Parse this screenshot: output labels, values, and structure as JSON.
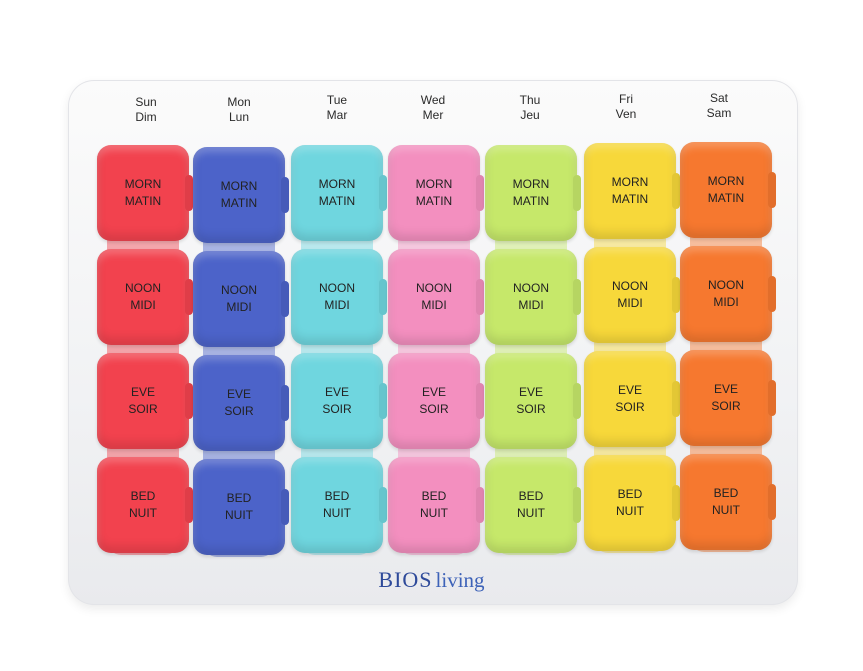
{
  "brand": {
    "primary": "BIOS",
    "secondary": "living",
    "color": "#2e4a9a"
  },
  "days": [
    {
      "en": "Sun",
      "fr": "Dim",
      "color": "#f2424e",
      "slots": [
        {
          "en": "MORN",
          "fr": "MATIN"
        },
        {
          "en": "NOON",
          "fr": "MIDI"
        },
        {
          "en": "EVE",
          "fr": "SOIR"
        },
        {
          "en": "BED",
          "fr": "NUIT"
        }
      ]
    },
    {
      "en": "Mon",
      "fr": "Lun",
      "color": "#4c63c9",
      "slots": [
        {
          "en": "MORN",
          "fr": "MATIN"
        },
        {
          "en": "NOON",
          "fr": "MIDI"
        },
        {
          "en": "EVE",
          "fr": "SOIR"
        },
        {
          "en": "BED",
          "fr": "NUIT"
        }
      ]
    },
    {
      "en": "Tue",
      "fr": "Mar",
      "color": "#6fd6df",
      "slots": [
        {
          "en": "MORN",
          "fr": "MATIN"
        },
        {
          "en": "NOON",
          "fr": "MIDI"
        },
        {
          "en": "EVE",
          "fr": "SOIR"
        },
        {
          "en": "BED",
          "fr": "NUIT"
        }
      ]
    },
    {
      "en": "Wed",
      "fr": "Mer",
      "color": "#f38fbf",
      "slots": [
        {
          "en": "MORN",
          "fr": "MATIN"
        },
        {
          "en": "NOON",
          "fr": "MIDI"
        },
        {
          "en": "EVE",
          "fr": "SOIR"
        },
        {
          "en": "BED",
          "fr": "NUIT"
        }
      ]
    },
    {
      "en": "Thu",
      "fr": "Jeu",
      "color": "#c6e86a",
      "slots": [
        {
          "en": "MORN",
          "fr": "MATIN"
        },
        {
          "en": "NOON",
          "fr": "MIDI"
        },
        {
          "en": "EVE",
          "fr": "SOIR"
        },
        {
          "en": "BED",
          "fr": "NUIT"
        }
      ]
    },
    {
      "en": "Fri",
      "fr": "Ven",
      "color": "#f7d83a",
      "slots": [
        {
          "en": "MORN",
          "fr": "MATIN"
        },
        {
          "en": "NOON",
          "fr": "MIDI"
        },
        {
          "en": "EVE",
          "fr": "SOIR"
        },
        {
          "en": "BED",
          "fr": "NUIT"
        }
      ]
    },
    {
      "en": "Sat",
      "fr": "Sam",
      "color": "#f6782f",
      "slots": [
        {
          "en": "MORN",
          "fr": "MATIN"
        },
        {
          "en": "NOON",
          "fr": "MIDI"
        },
        {
          "en": "EVE",
          "fr": "SOIR"
        },
        {
          "en": "BED",
          "fr": "NUIT"
        }
      ]
    }
  ]
}
